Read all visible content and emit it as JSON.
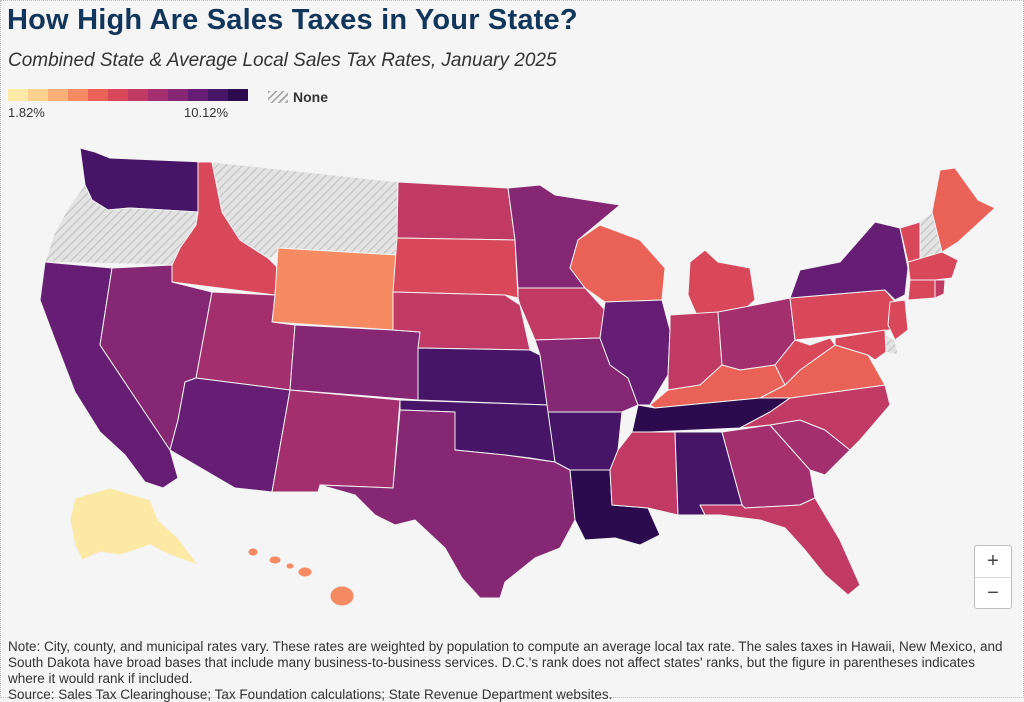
{
  "header": {
    "title": "How High Are Sales Taxes in Your State?",
    "subtitle": "Combined State & Average Local Sales Tax Rates, January 2025"
  },
  "legend": {
    "min_label": "1.82%",
    "max_label": "10.12%",
    "none_label": "None",
    "colors": [
      "#fde9a6",
      "#fbd08f",
      "#f9b078",
      "#f58a63",
      "#ea6257",
      "#d9475b",
      "#c13a66",
      "#a42f6e",
      "#862774",
      "#661e74",
      "#461567",
      "#2b0a4d"
    ]
  },
  "map": {
    "states": [
      {
        "id": "WA",
        "tier": 10
      },
      {
        "id": "OR",
        "tier": -1
      },
      {
        "id": "CA",
        "tier": 9
      },
      {
        "id": "ID",
        "tier": 5
      },
      {
        "id": "NV",
        "tier": 8
      },
      {
        "id": "MT",
        "tier": -1
      },
      {
        "id": "WY",
        "tier": 3
      },
      {
        "id": "UT",
        "tier": 7
      },
      {
        "id": "AZ",
        "tier": 9
      },
      {
        "id": "CO",
        "tier": 8
      },
      {
        "id": "NM",
        "tier": 7
      },
      {
        "id": "ND",
        "tier": 6
      },
      {
        "id": "SD",
        "tier": 5
      },
      {
        "id": "NE",
        "tier": 6
      },
      {
        "id": "KS",
        "tier": 10
      },
      {
        "id": "OK",
        "tier": 10
      },
      {
        "id": "TX",
        "tier": 8
      },
      {
        "id": "MN",
        "tier": 8
      },
      {
        "id": "IA",
        "tier": 6
      },
      {
        "id": "MO",
        "tier": 8
      },
      {
        "id": "AR",
        "tier": 10
      },
      {
        "id": "LA",
        "tier": 11
      },
      {
        "id": "WI",
        "tier": 4
      },
      {
        "id": "IL",
        "tier": 9
      },
      {
        "id": "MI",
        "tier": 5
      },
      {
        "id": "IN",
        "tier": 6
      },
      {
        "id": "OH",
        "tier": 7
      },
      {
        "id": "KY",
        "tier": 4
      },
      {
        "id": "TN",
        "tier": 11
      },
      {
        "id": "MS",
        "tier": 6
      },
      {
        "id": "AL",
        "tier": 10
      },
      {
        "id": "GA",
        "tier": 7
      },
      {
        "id": "FL",
        "tier": 6
      },
      {
        "id": "SC",
        "tier": 7
      },
      {
        "id": "NC",
        "tier": 6
      },
      {
        "id": "VA",
        "tier": 4
      },
      {
        "id": "WV",
        "tier": 5
      },
      {
        "id": "PA",
        "tier": 5
      },
      {
        "id": "NY",
        "tier": 9
      },
      {
        "id": "VT",
        "tier": 5
      },
      {
        "id": "NH",
        "tier": -1
      },
      {
        "id": "ME",
        "tier": 4
      },
      {
        "id": "MA",
        "tier": 5
      },
      {
        "id": "CT",
        "tier": 5
      },
      {
        "id": "RI",
        "tier": 6
      },
      {
        "id": "NJ",
        "tier": 5
      },
      {
        "id": "DE",
        "tier": -1
      },
      {
        "id": "MD",
        "tier": 5
      },
      {
        "id": "AK",
        "tier": 0
      },
      {
        "id": "HI",
        "tier": 3
      }
    ]
  },
  "controls": {
    "zoom_in": "+",
    "zoom_out": "−"
  },
  "footer": {
    "note": "Note: City, county, and municipal rates vary. These rates are weighted by population to compute an average local tax rate. The sales taxes in Hawaii, New Mexico, and South Dakota have broad bases that include many business-to-business services. D.C.'s rank does not affect states' ranks, but the figure in parentheses indicates where it would rank if included.",
    "source": "Source: Sales Tax Clearinghouse; Tax Foundation calculations; State Revenue Department websites."
  }
}
